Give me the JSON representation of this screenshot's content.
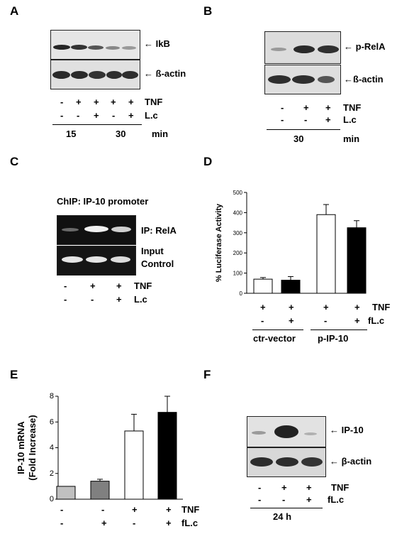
{
  "panels": {
    "A": {
      "label": "A",
      "blot_labels": [
        "IkB",
        "ß-actin"
      ],
      "rows": [
        {
          "name": "TNF",
          "signs": [
            "-",
            "+",
            "+",
            "+",
            "+"
          ]
        },
        {
          "name": "L.c",
          "signs": [
            "-",
            "-",
            "+",
            "-",
            "+"
          ]
        }
      ],
      "time_groups": [
        "15",
        "30"
      ],
      "time_unit": "min"
    },
    "B": {
      "label": "B",
      "blot_labels": [
        "p-RelA",
        "ß-actin"
      ],
      "rows": [
        {
          "name": "TNF",
          "signs": [
            "-",
            "+",
            "+"
          ]
        },
        {
          "name": "L.c",
          "signs": [
            "-",
            "-",
            "+"
          ]
        }
      ],
      "time_groups": [
        "30"
      ],
      "time_unit": "min"
    },
    "C": {
      "label": "C",
      "title": "ChIP: IP-10 promoter",
      "blot_labels": [
        "IP: RelA",
        "Input",
        "Control"
      ],
      "rows": [
        {
          "name": "TNF",
          "signs": [
            "-",
            "+",
            "+"
          ]
        },
        {
          "name": "L.c",
          "signs": [
            "-",
            "-",
            "+"
          ]
        }
      ]
    },
    "D": {
      "label": "D",
      "rows": [
        {
          "name": "TNF",
          "signs": [
            "+",
            "+",
            "+",
            "+"
          ]
        },
        {
          "name": "fL.c",
          "signs": [
            "-",
            "+",
            "-",
            "+"
          ]
        }
      ],
      "groups": [
        "ctr-vector",
        "p-IP-10"
      ]
    },
    "E": {
      "label": "E",
      "rows": [
        {
          "name": "TNF",
          "signs": [
            "-",
            "-",
            "+",
            "+"
          ]
        },
        {
          "name": "fL.c",
          "signs": [
            "-",
            "+",
            "-",
            "+"
          ]
        }
      ]
    },
    "F": {
      "label": "F",
      "blot_labels": [
        "IP-10",
        "β-actin"
      ],
      "rows": [
        {
          "name": "TNF",
          "signs": [
            "-",
            "+",
            "+"
          ]
        },
        {
          "name": "fL.c",
          "signs": [
            "-",
            "-",
            "+"
          ]
        }
      ],
      "time_label": "24 h"
    }
  },
  "chart_data": [
    {
      "type": "bar",
      "panel": "D",
      "ylabel": "% Luciferase Activity",
      "ylim": [
        0,
        500
      ],
      "yticks": [
        0,
        100,
        200,
        300,
        400,
        500
      ],
      "values": [
        70,
        65,
        390,
        325
      ],
      "errors": [
        8,
        18,
        50,
        35
      ],
      "bar_colors": [
        "#ffffff",
        "#000000",
        "#ffffff",
        "#000000"
      ]
    },
    {
      "type": "bar",
      "panel": "E",
      "ylabel": "IP-10 mRNA (Fold Increase)",
      "ylabel_lines": [
        "IP-10 mRNA",
        "(Fold Increase)"
      ],
      "ylim": [
        0,
        8
      ],
      "yticks": [
        0,
        2,
        4,
        6,
        8
      ],
      "values": [
        1.0,
        1.4,
        5.3,
        6.75
      ],
      "errors": [
        0,
        0.15,
        1.3,
        1.25
      ],
      "bar_colors": [
        "#c0c0c0",
        "#808080",
        "#ffffff",
        "#000000"
      ]
    }
  ]
}
